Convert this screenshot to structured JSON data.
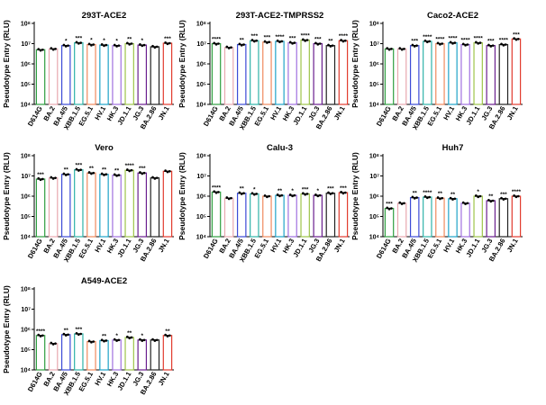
{
  "chart_data": {
    "type": "bar",
    "y_scale": "log",
    "ylim": [
      10000,
      100000000
    ],
    "y_ticks": [
      {
        "value": 10000,
        "label": "10⁴"
      },
      {
        "value": 100000,
        "label": "10⁵"
      },
      {
        "value": 1000000,
        "label": "10⁶"
      },
      {
        "value": 10000000,
        "label": "10⁷"
      },
      {
        "value": 100000000,
        "label": "10⁸"
      }
    ],
    "ylabel": "Pseudotype Entry (RLU)",
    "categories": [
      "D614G",
      "BA.2",
      "BA.4/5",
      "XBB.1.5",
      "EG.5.1",
      "HV.1",
      "HK.3",
      "JD.1.1",
      "JG.3",
      "BA.2.86",
      "JN.1"
    ],
    "colors": [
      "#2e9e3f",
      "#e8a8b0",
      "#3c4bd6",
      "#2fb3a8",
      "#f08a5e",
      "#1fa3c9",
      "#a070e0",
      "#9ec54a",
      "#6a1f8f",
      "#222222",
      "#e23b2e"
    ],
    "panels": [
      {
        "title": "293T-ACE2",
        "values": [
          5000000,
          5500000,
          8000000,
          11000000,
          9000000,
          8500000,
          8000000,
          10000000,
          8500000,
          7000000,
          10500000
        ],
        "sig": [
          "",
          "",
          "*",
          "***",
          "*",
          "*",
          "*",
          "**",
          "*",
          "",
          "***"
        ]
      },
      {
        "title": "293T-ACE2-TMPRSS2",
        "values": [
          10000000,
          6500000,
          9000000,
          14000000,
          12000000,
          13000000,
          11000000,
          15000000,
          10000000,
          8000000,
          14000000
        ],
        "sig": [
          "****",
          "",
          "**",
          "***",
          "***",
          "****",
          "***",
          "****",
          "***",
          "**",
          "****"
        ]
      },
      {
        "title": "Caco2-ACE2",
        "values": [
          5500000,
          5500000,
          8000000,
          13000000,
          10000000,
          11000000,
          9000000,
          11000000,
          8000000,
          9000000,
          17000000
        ],
        "sig": [
          "",
          "",
          "***",
          "****",
          "****",
          "****",
          "****",
          "****",
          "***",
          "****",
          "***"
        ]
      },
      {
        "title": "Vero",
        "values": [
          7000000,
          8000000,
          12000000,
          20000000,
          14000000,
          12000000,
          11000000,
          19000000,
          14000000,
          8000000,
          17000000
        ],
        "sig": [
          "***",
          "",
          "**",
          "***",
          "**",
          "**",
          "**",
          "****",
          "***",
          "",
          ""
        ]
      },
      {
        "title": "Calu-3",
        "values": [
          1600000,
          800000,
          1400000,
          1300000,
          1000000,
          1100000,
          1100000,
          1300000,
          1100000,
          1400000,
          1500000
        ],
        "sig": [
          "****",
          "",
          "**",
          "*",
          "",
          "**",
          "*",
          "***",
          "*",
          "***",
          "***"
        ]
      },
      {
        "title": "Huh7",
        "values": [
          250000,
          450000,
          850000,
          900000,
          800000,
          750000,
          450000,
          1000000,
          600000,
          750000,
          1000000
        ],
        "sig": [
          "***",
          "",
          "**",
          "****",
          "**",
          "**",
          "",
          "*",
          "**",
          "***",
          "****"
        ]
      },
      {
        "title": "A549-ACE2",
        "values": [
          500000,
          200000,
          550000,
          600000,
          250000,
          280000,
          300000,
          400000,
          300000,
          300000,
          500000
        ],
        "sig": [
          "****",
          "",
          "**",
          "***",
          "",
          "**",
          "*",
          "**",
          "*",
          "",
          "**"
        ]
      }
    ]
  }
}
